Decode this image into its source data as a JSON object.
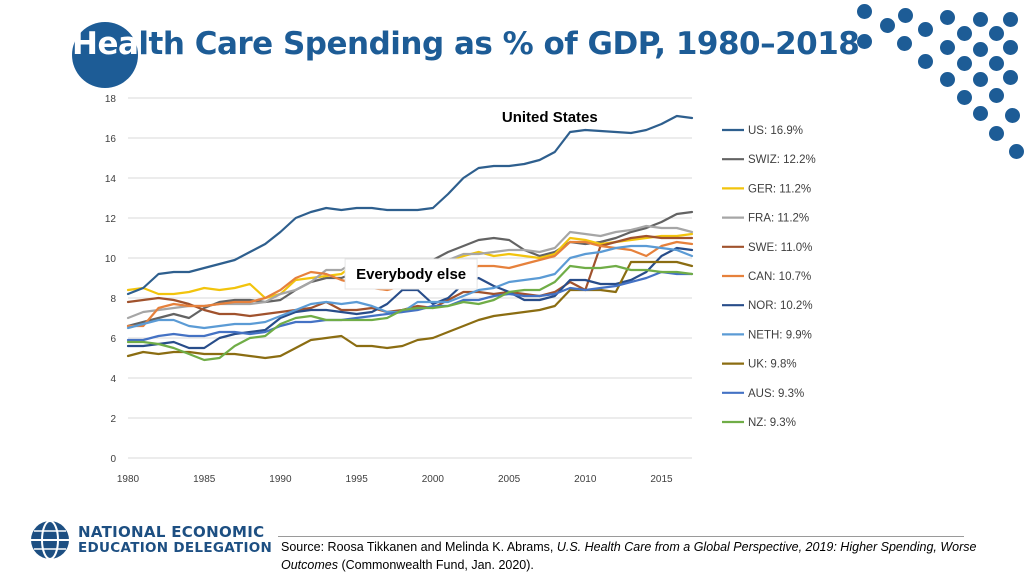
{
  "slide": {
    "title_highlight": "Hea",
    "title_rest": "lth Care Spending as % of GDP, 1980–2018",
    "source_prefix": "Source: Roosa Tikkanen and Melinda K. Abrams, ",
    "source_italic_1": "U.S. Health Care from a Global Perspective, 2019: Higher Spending, Worse Outcomes",
    "source_suffix": " (Commonwealth Fund, Jan. 2020).",
    "org_line1": "NATIONAL ECONOMIC",
    "org_line2": "EDUCATION DELEGATION"
  },
  "colors": {
    "brand": "#1d5c96"
  },
  "chart_data": {
    "type": "line",
    "title": "Health Care Spending as % of GDP, 1980–2018",
    "xlabel": "",
    "ylabel": "",
    "xlim": [
      1980,
      2017
    ],
    "ylim": [
      0,
      18
    ],
    "x_ticks": [
      1980,
      1985,
      1990,
      1995,
      2000,
      2005,
      2010,
      2015
    ],
    "y_ticks": [
      0,
      2,
      4,
      6,
      8,
      10,
      12,
      14,
      16,
      18
    ],
    "grid": "horizontal",
    "legend_position": "right",
    "annotations": [
      {
        "text": "United States",
        "x": 2008,
        "y": 17.0
      },
      {
        "text": "Everybody else",
        "x": 2001,
        "y": 9.2
      }
    ],
    "years": [
      1980,
      1981,
      1982,
      1983,
      1984,
      1985,
      1986,
      1987,
      1988,
      1989,
      1990,
      1991,
      1992,
      1993,
      1994,
      1995,
      1996,
      1997,
      1998,
      1999,
      2000,
      2001,
      2002,
      2003,
      2004,
      2005,
      2006,
      2007,
      2008,
      2009,
      2010,
      2011,
      2012,
      2013,
      2014,
      2015,
      2016,
      2017
    ],
    "series": [
      {
        "name": "US",
        "legend": "US: 16.9%",
        "color": "#2e5f8e",
        "values": [
          8.2,
          8.5,
          9.2,
          9.3,
          9.3,
          9.5,
          9.7,
          9.9,
          10.3,
          10.7,
          11.3,
          12.0,
          12.3,
          12.5,
          12.4,
          12.5,
          12.5,
          12.4,
          12.4,
          12.4,
          12.5,
          13.2,
          14.0,
          14.5,
          14.6,
          14.6,
          14.7,
          14.9,
          15.3,
          16.3,
          16.4,
          16.35,
          16.3,
          16.25,
          16.4,
          16.7,
          17.1,
          17.0
        ]
      },
      {
        "name": "SWIZ",
        "legend": "SWIZ: 12.2%",
        "color": "#636363",
        "values": [
          6.6,
          6.8,
          7.0,
          7.2,
          7.0,
          7.5,
          7.8,
          7.9,
          7.9,
          7.8,
          7.9,
          8.4,
          8.8,
          9.0,
          9.0,
          9.3,
          9.6,
          9.7,
          9.8,
          9.9,
          9.9,
          10.3,
          10.6,
          10.9,
          11.0,
          10.9,
          10.4,
          10.1,
          10.3,
          10.8,
          10.7,
          10.8,
          11.0,
          11.3,
          11.5,
          11.8,
          12.2,
          12.3
        ]
      },
      {
        "name": "GER",
        "legend": "GER: 11.2%",
        "color": "#f2c40d",
        "values": [
          8.4,
          8.5,
          8.2,
          8.2,
          8.3,
          8.5,
          8.4,
          8.5,
          8.7,
          8.0,
          8.2,
          8.9,
          9.0,
          9.1,
          9.2,
          9.8,
          9.9,
          9.7,
          9.7,
          9.8,
          9.8,
          9.9,
          10.1,
          10.3,
          10.1,
          10.2,
          10.1,
          10.0,
          10.2,
          11.0,
          10.9,
          10.7,
          10.8,
          10.9,
          11.0,
          11.1,
          11.1,
          11.2
        ]
      },
      {
        "name": "FRA",
        "legend": "FRA: 11.2%",
        "color": "#a6a6a6",
        "values": [
          7.0,
          7.3,
          7.4,
          7.5,
          7.6,
          7.6,
          7.7,
          7.7,
          7.7,
          7.8,
          8.2,
          8.4,
          8.8,
          9.4,
          9.4,
          9.9,
          9.9,
          9.8,
          9.8,
          9.8,
          9.7,
          9.9,
          10.2,
          10.2,
          10.3,
          10.4,
          10.4,
          10.3,
          10.5,
          11.3,
          11.2,
          11.1,
          11.3,
          11.4,
          11.6,
          11.5,
          11.5,
          11.3
        ]
      },
      {
        "name": "SWE",
        "legend": "SWE: 11.0%",
        "color": "#a0522d",
        "values": [
          7.8,
          7.9,
          8.0,
          7.9,
          7.7,
          7.4,
          7.2,
          7.2,
          7.1,
          7.2,
          7.3,
          7.4,
          7.5,
          7.8,
          7.4,
          7.4,
          7.5,
          7.3,
          7.4,
          7.6,
          7.5,
          7.9,
          8.3,
          8.3,
          8.2,
          8.3,
          8.2,
          8.1,
          8.3,
          8.8,
          8.4,
          10.6,
          10.8,
          11.0,
          11.1,
          11.0,
          11.0,
          11.0
        ]
      },
      {
        "name": "CAN",
        "legend": "CAN: 10.7%",
        "color": "#e6813c",
        "values": [
          6.6,
          6.6,
          7.5,
          7.7,
          7.6,
          7.6,
          7.7,
          7.8,
          7.8,
          8.0,
          8.4,
          9.0,
          9.3,
          9.2,
          8.9,
          8.7,
          8.5,
          8.4,
          8.6,
          8.5,
          8.5,
          8.9,
          9.3,
          9.6,
          9.6,
          9.5,
          9.7,
          9.9,
          10.1,
          10.8,
          10.8,
          10.6,
          10.5,
          10.4,
          10.1,
          10.6,
          10.8,
          10.7
        ]
      },
      {
        "name": "NOR",
        "legend": "NOR: 10.2%",
        "color": "#284d8a",
        "values": [
          5.6,
          5.6,
          5.7,
          5.8,
          5.5,
          5.5,
          6.0,
          6.2,
          6.3,
          6.4,
          7.0,
          7.3,
          7.4,
          7.4,
          7.3,
          7.2,
          7.3,
          7.7,
          8.4,
          8.4,
          7.7,
          8.0,
          8.7,
          9.0,
          8.6,
          8.3,
          7.9,
          7.9,
          8.1,
          8.9,
          8.9,
          8.7,
          8.7,
          8.9,
          9.3,
          10.1,
          10.5,
          10.4
        ]
      },
      {
        "name": "NETH",
        "legend": "NETH: 9.9%",
        "color": "#5b9bd5",
        "values": [
          6.5,
          6.7,
          6.9,
          6.9,
          6.6,
          6.5,
          6.6,
          6.7,
          6.7,
          6.8,
          7.1,
          7.4,
          7.7,
          7.8,
          7.7,
          7.8,
          7.6,
          7.3,
          7.3,
          7.8,
          7.8,
          7.8,
          8.1,
          8.4,
          8.5,
          8.8,
          8.9,
          9.0,
          9.2,
          10.0,
          10.2,
          10.3,
          10.5,
          10.6,
          10.6,
          10.5,
          10.4,
          10.1
        ]
      },
      {
        "name": "UK",
        "legend": "UK: 9.8%",
        "color": "#8b6d12",
        "values": [
          5.1,
          5.3,
          5.2,
          5.3,
          5.3,
          5.2,
          5.2,
          5.2,
          5.1,
          5.0,
          5.1,
          5.5,
          5.9,
          6.0,
          6.1,
          5.6,
          5.6,
          5.5,
          5.6,
          5.9,
          6.0,
          6.3,
          6.6,
          6.9,
          7.1,
          7.2,
          7.3,
          7.4,
          7.6,
          8.4,
          8.4,
          8.4,
          8.3,
          9.8,
          9.8,
          9.8,
          9.8,
          9.6
        ]
      },
      {
        "name": "AUS",
        "legend": "AUS: 9.3%",
        "color": "#4472c4",
        "values": [
          5.9,
          5.9,
          6.1,
          6.2,
          6.1,
          6.1,
          6.3,
          6.3,
          6.2,
          6.3,
          6.6,
          6.8,
          6.8,
          6.9,
          6.9,
          7.0,
          7.1,
          7.2,
          7.3,
          7.4,
          7.6,
          7.6,
          7.9,
          7.9,
          8.1,
          8.2,
          8.1,
          8.1,
          8.2,
          8.5,
          8.4,
          8.5,
          8.6,
          8.8,
          9.0,
          9.3,
          9.2,
          9.2
        ]
      },
      {
        "name": "NZ",
        "legend": "NZ: 9.3%",
        "color": "#70ad47",
        "values": [
          5.8,
          5.8,
          5.7,
          5.5,
          5.2,
          4.9,
          5.0,
          5.6,
          6.0,
          6.1,
          6.7,
          7.0,
          7.1,
          6.9,
          6.9,
          6.9,
          6.9,
          7.0,
          7.4,
          7.5,
          7.5,
          7.6,
          7.8,
          7.7,
          7.9,
          8.3,
          8.4,
          8.4,
          8.8,
          9.6,
          9.5,
          9.5,
          9.6,
          9.4,
          9.4,
          9.3,
          9.3,
          9.2
        ]
      }
    ]
  }
}
